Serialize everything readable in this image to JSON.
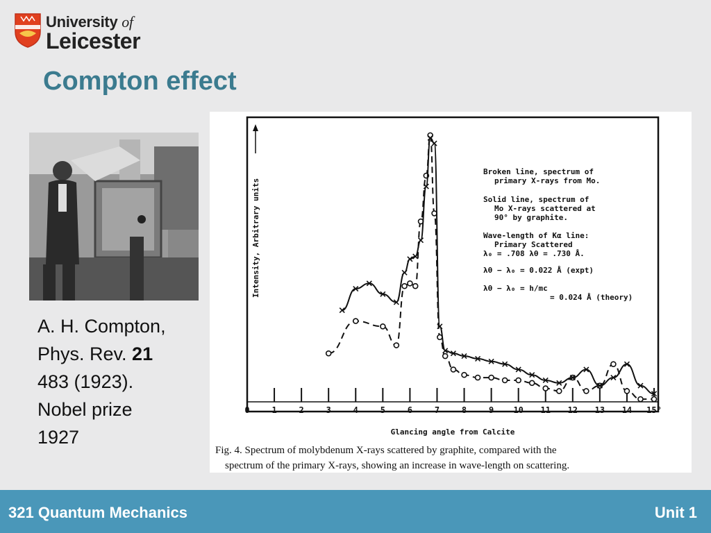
{
  "logo": {
    "line1": "University",
    "of": "of",
    "line2": "Leicester"
  },
  "slide": {
    "title": "Compton effect"
  },
  "caption": {
    "line1": "A. H. Compton,",
    "line2a": "Phys. Rev. ",
    "line2b": "21",
    "line3": "483 (1923).",
    "line4": "Nobel prize",
    "line5": "1927"
  },
  "footer": {
    "course": "321 Quantum Mechanics",
    "unit": "Unit 1"
  },
  "chart_data": {
    "type": "line",
    "xlabel": "Glancing angle from Calcite",
    "ylabel": "Intensity, Arbitrary units",
    "xlim": [
      0,
      15
    ],
    "x_ticks": [
      "0",
      "1",
      "2",
      "3",
      "4",
      "5",
      "6",
      "7",
      "8",
      "9",
      "10",
      "11",
      "12",
      "13",
      "14",
      "15°"
    ],
    "ylim": [
      0,
      100
    ],
    "legend_text": [
      "Broken line, spectrum of",
      "primary X-rays from Mo.",
      "Solid line, spectrum of",
      "Mo X-rays scattered at",
      "90° by graphite.",
      "Wave-length of Kα line:",
      "Primary    Scattered",
      "λ₀ = .708   λθ = .730 Å.",
      "λθ − λ₀ = 0.022 Å (expt)",
      "λθ − λ₀ = h/mc",
      "= 0.024 Å (theory)"
    ],
    "figure_caption_1": "Fig. 4.   Spectrum of molybdenum X-rays scattered by graphite, compared with the",
    "figure_caption_2": "spectrum of the primary X-rays, showing an increase in wave-length on scattering.",
    "series": [
      {
        "style": "dashed",
        "marker": "circle",
        "x": [
          3.0,
          4.0,
          5.0,
          5.5,
          5.8,
          6.0,
          6.2,
          6.4,
          6.6,
          6.75,
          6.9,
          7.1,
          7.3,
          7.6,
          8.0,
          8.5,
          9.0,
          9.5,
          10.0,
          10.5,
          11.0,
          11.5,
          12.0,
          12.5,
          13.0,
          13.5,
          14.0,
          14.5,
          15.0
        ],
        "y": [
          18,
          30,
          28,
          21,
          43,
          44,
          43,
          67,
          84,
          99,
          70,
          24,
          17,
          12,
          10,
          9,
          9,
          8,
          8,
          7,
          5,
          4,
          9,
          4,
          6,
          14,
          4,
          1,
          1
        ]
      },
      {
        "style": "solid",
        "marker": "cross",
        "x": [
          3.5,
          4.0,
          4.5,
          5.0,
          5.5,
          5.8,
          6.0,
          6.2,
          6.4,
          6.6,
          6.75,
          6.9,
          7.1,
          7.3,
          7.6,
          8.0,
          8.5,
          9.0,
          9.5,
          10.0,
          10.5,
          11.0,
          11.5,
          12.0,
          12.5,
          13.0,
          13.5,
          14.0,
          14.5,
          15.0
        ],
        "y": [
          34,
          42,
          44,
          40,
          37,
          48,
          53,
          54,
          60,
          80,
          98,
          96,
          28,
          19,
          18,
          17,
          16,
          15,
          14,
          12,
          10,
          8,
          7,
          9,
          12,
          6,
          9,
          14,
          6,
          3
        ]
      }
    ]
  }
}
